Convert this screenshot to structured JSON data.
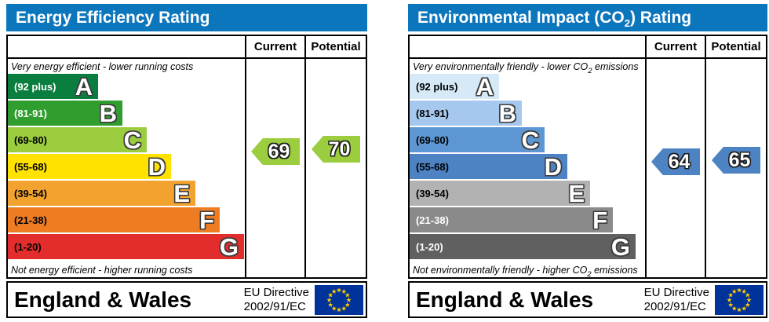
{
  "charts": [
    {
      "name": "energy-efficiency",
      "title": {
        "pre": "Energy Efficiency Rating",
        "sub": "",
        "post": ""
      },
      "header_color": "#0c76bd",
      "columns": {
        "current": "Current",
        "potential": "Potential"
      },
      "top_note": {
        "pre": "Very energy efficient - lower running costs",
        "sub": "",
        "post": ""
      },
      "bottom_note": {
        "pre": "Not energy efficient - higher running costs",
        "sub": "",
        "post": ""
      },
      "bands": [
        {
          "label": "(92 plus)",
          "letter": "A",
          "min": 92,
          "max": 100,
          "color": "#097e3e",
          "label_color": "#ffffff"
        },
        {
          "label": "(81-91)",
          "letter": "B",
          "min": 81,
          "max": 91,
          "color": "#2f9e2e",
          "label_color": "#ffffff"
        },
        {
          "label": "(69-80)",
          "letter": "C",
          "min": 69,
          "max": 80,
          "color": "#9bcd3f",
          "label_color": "#000000"
        },
        {
          "label": "(55-68)",
          "letter": "D",
          "min": 55,
          "max": 68,
          "color": "#ffe200",
          "label_color": "#000000"
        },
        {
          "label": "(39-54)",
          "letter": "E",
          "min": 39,
          "max": 54,
          "color": "#f2a32f",
          "label_color": "#000000"
        },
        {
          "label": "(21-38)",
          "letter": "F",
          "min": 21,
          "max": 38,
          "color": "#ed7c23",
          "label_color": "#000000"
        },
        {
          "label": "(1-20)",
          "letter": "G",
          "min": 1,
          "max": 20,
          "color": "#e32d2c",
          "label_color": "#000000"
        }
      ],
      "current": "69",
      "potential": "70",
      "arrow_color": "#9bcd3f",
      "footer": {
        "region": "England & Wales",
        "directive": [
          "EU Directive",
          "2002/91/EC"
        ]
      }
    },
    {
      "name": "environmental-impact-co2",
      "title": {
        "pre": "Environmental Impact (CO",
        "sub": "2",
        "post": ") Rating"
      },
      "header_color": "#0c76bd",
      "columns": {
        "current": "Current",
        "potential": "Potential"
      },
      "top_note": {
        "pre": "Very environmentally friendly - lower CO",
        "sub": "2",
        "post": " emissions"
      },
      "bottom_note": {
        "pre": "Not environmentally friendly - higher CO",
        "sub": "2",
        "post": " emissions"
      },
      "bands": [
        {
          "label": "(92 plus)",
          "letter": "A",
          "min": 92,
          "max": 100,
          "color": "#d5e9f7",
          "label_color": "#000000"
        },
        {
          "label": "(81-91)",
          "letter": "B",
          "min": 81,
          "max": 91,
          "color": "#a6c8ee",
          "label_color": "#000000"
        },
        {
          "label": "(69-80)",
          "letter": "C",
          "min": 69,
          "max": 80,
          "color": "#5d97d3",
          "label_color": "#000000"
        },
        {
          "label": "(55-68)",
          "letter": "D",
          "min": 55,
          "max": 68,
          "color": "#4d82c3",
          "label_color": "#000000"
        },
        {
          "label": "(39-54)",
          "letter": "E",
          "min": 39,
          "max": 54,
          "color": "#b2b2b2",
          "label_color": "#000000"
        },
        {
          "label": "(21-38)",
          "letter": "F",
          "min": 21,
          "max": 38,
          "color": "#8a8a8a",
          "label_color": "#ffffff"
        },
        {
          "label": "(1-20)",
          "letter": "G",
          "min": 1,
          "max": 20,
          "color": "#606060",
          "label_color": "#ffffff"
        }
      ],
      "current": "64",
      "potential": "65",
      "arrow_color": "#4d82c3",
      "footer": {
        "region": "England & Wales",
        "directive": [
          "EU Directive",
          "2002/91/EC"
        ]
      }
    }
  ],
  "flag": {
    "background": "#003399",
    "star_color": "#ffcc00"
  },
  "chart_data": [
    {
      "type": "bar",
      "title": "Energy Efficiency Rating",
      "categories": [
        "A (92 plus)",
        "B (81-91)",
        "C (69-80)",
        "D (55-68)",
        "E (39-54)",
        "F (21-38)",
        "G (1-20)"
      ],
      "band_ranges": [
        [
          92,
          100
        ],
        [
          81,
          91
        ],
        [
          69,
          80
        ],
        [
          55,
          68
        ],
        [
          39,
          54
        ],
        [
          21,
          38
        ],
        [
          1,
          20
        ]
      ],
      "series": [
        {
          "name": "Current",
          "values": [
            69
          ]
        },
        {
          "name": "Potential",
          "values": [
            70
          ]
        }
      ],
      "current_band": "C",
      "potential_band": "C",
      "top_annotation": "Very energy efficient - lower running costs",
      "bottom_annotation": "Not energy efficient - higher running costs",
      "footer": "England & Wales, EU Directive 2002/91/EC"
    },
    {
      "type": "bar",
      "title": "Environmental Impact (CO2) Rating",
      "categories": [
        "A (92 plus)",
        "B (81-91)",
        "C (69-80)",
        "D (55-68)",
        "E (39-54)",
        "F (21-38)",
        "G (1-20)"
      ],
      "band_ranges": [
        [
          92,
          100
        ],
        [
          81,
          91
        ],
        [
          69,
          80
        ],
        [
          55,
          68
        ],
        [
          39,
          54
        ],
        [
          21,
          38
        ],
        [
          1,
          20
        ]
      ],
      "series": [
        {
          "name": "Current",
          "values": [
            64
          ]
        },
        {
          "name": "Potential",
          "values": [
            65
          ]
        }
      ],
      "current_band": "D",
      "potential_band": "D",
      "top_annotation": "Very environmentally friendly - lower CO2 emissions",
      "bottom_annotation": "Not environmentally friendly - higher CO2 emissions",
      "footer": "England & Wales, EU Directive 2002/91/EC"
    }
  ]
}
